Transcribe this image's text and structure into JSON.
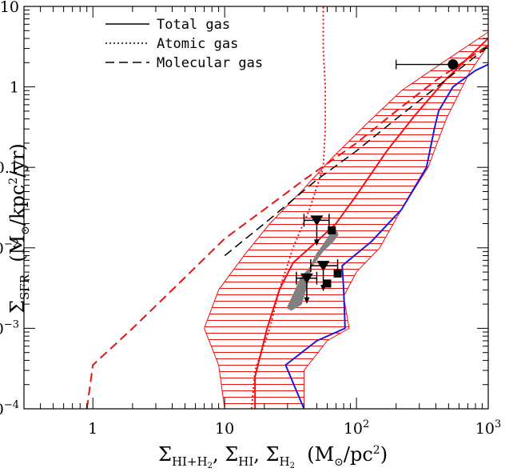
{
  "chart_data": {
    "type": "line",
    "title": "",
    "xscale": "log",
    "yscale": "log",
    "xlim": [
      0.3,
      1000
    ],
    "ylim": [
      0.0001,
      10
    ],
    "xlabel": "Σ_{HI+H₂}, Σ_{HI}, Σ_{H₂} (M_⊙/pc²)",
    "ylabel": "Σ_SFR (M_⊙/kpc²/yr)",
    "xlabel_parts": {
      "s1": "Σ",
      "sub1": "HI+H",
      "subsub1": "2",
      "sep1": ", ",
      "s2": "Σ",
      "sub2": "HI",
      "sep2": ", ",
      "s3": "Σ",
      "sub3": "H",
      "subsub3": "2",
      "units": "  (M",
      "odot": "⊙",
      "units_tail": "/pc",
      "units_sup": "2",
      "units_close": ")"
    },
    "ylabel_parts": {
      "s": "Σ",
      "sub": "SFR",
      "units": "  (M",
      "odot": "⊙",
      "units_tail": "/kpc",
      "units_sup": "2",
      "units_close": "/yr)"
    },
    "x_ticks": [
      {
        "value": 1,
        "label": "1"
      },
      {
        "value": 10,
        "label": "10"
      },
      {
        "value": 100,
        "base": "10",
        "exp": "2"
      },
      {
        "value": 1000,
        "base": "10",
        "exp": "3"
      }
    ],
    "y_ticks": [
      {
        "value": 0.0001,
        "base": "10",
        "exp": "−4"
      },
      {
        "value": 0.001,
        "base": "10",
        "exp": "−3"
      },
      {
        "value": 0.01,
        "base": "10",
        "exp": "−2"
      },
      {
        "value": 0.1,
        "label": "0.1"
      },
      {
        "value": 1,
        "label": "1"
      },
      {
        "value": 10,
        "label": "10"
      }
    ],
    "legend": {
      "placement": "top-left",
      "entries": [
        {
          "label": "Total gas",
          "style": "solid"
        },
        {
          "label": "Atomic gas",
          "style": "dotted"
        },
        {
          "label": "Molecular gas",
          "style": "dashed"
        }
      ]
    },
    "colors": {
      "red": "#ee1111",
      "blue": "#1a1adc",
      "black": "#000000",
      "gray": "#808080"
    },
    "series": [
      {
        "style": "solid",
        "color": "red",
        "points": [
          [
            17,
            0.0001
          ],
          [
            17,
            0.00025
          ],
          [
            21,
            0.001
          ],
          [
            26,
            0.003
          ],
          [
            33,
            0.0065
          ],
          [
            50,
            0.012
          ],
          [
            70,
            0.02
          ],
          [
            100,
            0.045
          ],
          [
            170,
            0.16
          ],
          [
            280,
            0.45
          ],
          [
            480,
            1.25
          ],
          [
            1000,
            4
          ]
        ]
      },
      {
        "style": "dotted",
        "color": "red",
        "points": [
          [
            16,
            0.0001
          ],
          [
            17,
            0.0003
          ],
          [
            22,
            0.001
          ],
          [
            26,
            0.003
          ],
          [
            33,
            0.01
          ],
          [
            44,
            0.03
          ],
          [
            56,
            0.1
          ],
          [
            58,
            0.3
          ],
          [
            58,
            1
          ],
          [
            56,
            3
          ],
          [
            56,
            10
          ]
        ]
      },
      {
        "style": "dashed",
        "color": "red",
        "points": [
          [
            0.9,
            0.0001
          ],
          [
            1,
            0.00035
          ],
          [
            2,
            0.001
          ],
          [
            4,
            0.003
          ],
          [
            10,
            0.013
          ],
          [
            20,
            0.03
          ],
          [
            40,
            0.07
          ],
          [
            100,
            0.2
          ],
          [
            200,
            0.5
          ],
          [
            400,
            1.2
          ],
          [
            1000,
            3.3
          ]
        ]
      },
      {
        "style": "dashed",
        "color": "black",
        "points": [
          [
            10,
            0.008
          ],
          [
            20,
            0.02
          ],
          [
            50,
            0.07
          ],
          [
            100,
            0.16
          ],
          [
            200,
            0.4
          ],
          [
            500,
            1.3
          ],
          [
            1000,
            3.2
          ]
        ]
      },
      {
        "style": "solid",
        "color": "blue",
        "points": [
          [
            40,
            0.0001
          ],
          [
            29,
            0.00035
          ],
          [
            50,
            0.0007
          ],
          [
            82,
            0.001
          ],
          [
            80,
            0.003
          ],
          [
            78,
            0.006
          ],
          [
            130,
            0.012
          ],
          [
            220,
            0.03
          ],
          [
            340,
            0.1
          ],
          [
            390,
            0.3
          ],
          [
            420,
            0.5
          ],
          [
            540,
            1
          ],
          [
            800,
            1.6
          ],
          [
            1000,
            1.9
          ]
        ]
      }
    ],
    "band": {
      "color": "red",
      "fill": "horizontal-hatch",
      "upper": [
        [
          40,
          0.0001
        ],
        [
          40,
          0.0003
        ],
        [
          60,
          0.0007
        ],
        [
          88,
          0.001
        ],
        [
          80,
          0.0025
        ],
        [
          100,
          0.005
        ],
        [
          150,
          0.01
        ],
        [
          220,
          0.03
        ],
        [
          350,
          0.1
        ],
        [
          480,
          0.4
        ],
        [
          720,
          1.5
        ],
        [
          1000,
          3.3
        ]
      ],
      "lower": [
        [
          10,
          0.0001
        ],
        [
          9,
          0.00035
        ],
        [
          7,
          0.001
        ],
        [
          9,
          0.003
        ],
        [
          14,
          0.008
        ],
        [
          22,
          0.02
        ],
        [
          38,
          0.05
        ],
        [
          65,
          0.13
        ],
        [
          120,
          0.35
        ],
        [
          220,
          0.9
        ],
        [
          450,
          2
        ],
        [
          1000,
          4.8
        ]
      ]
    },
    "gray_region": {
      "color": "gray",
      "outline": [
        [
          30,
          0.0018
        ],
        [
          34,
          0.0028
        ],
        [
          38,
          0.0042
        ],
        [
          46,
          0.006
        ],
        [
          55,
          0.009
        ],
        [
          66,
          0.012
        ],
        [
          72,
          0.0145
        ],
        [
          70,
          0.0165
        ],
        [
          64,
          0.015
        ],
        [
          57,
          0.0112
        ],
        [
          50,
          0.0083
        ],
        [
          45,
          0.0058
        ],
        [
          42,
          0.0035
        ],
        [
          38,
          0.002
        ],
        [
          32,
          0.0017
        ]
      ]
    },
    "points": [
      {
        "marker": "circle",
        "x": 540,
        "y": 1.9,
        "xerr_low": 200
      },
      {
        "marker": "triangle-down",
        "x": 50,
        "y": 0.022,
        "xerr": [
          40,
          62
        ],
        "upper_limit": true
      },
      {
        "marker": "triangle-down",
        "x": 56,
        "y": 0.006,
        "xerr": [
          45,
          72
        ],
        "upper_limit": true
      },
      {
        "marker": "triangle-down",
        "x": 42,
        "y": 0.0042,
        "xerr": [
          35,
          50
        ],
        "upper_limit": true
      },
      {
        "marker": "square",
        "x": 65,
        "y": 0.0165
      },
      {
        "marker": "square",
        "x": 72,
        "y": 0.0048
      },
      {
        "marker": "square",
        "x": 60,
        "y": 0.0036
      }
    ]
  }
}
